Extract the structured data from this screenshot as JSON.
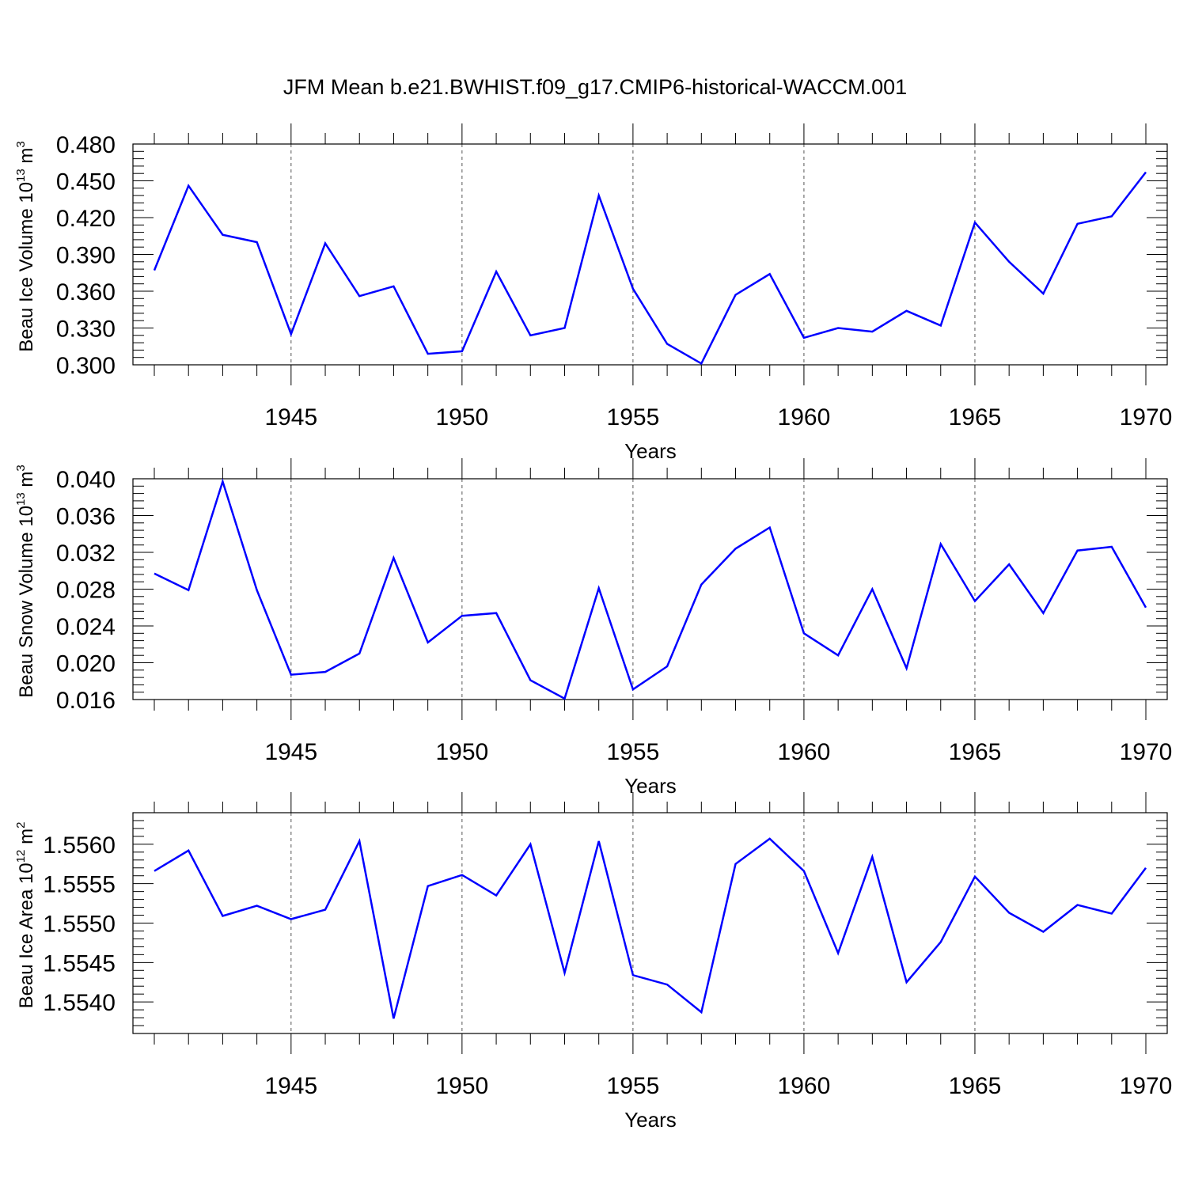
{
  "title": "JFM Mean b.e21.BWHIST.f09_g17.CMIP6-historical-WACCM.001",
  "chart_data": [
    {
      "type": "line",
      "ylabel": "Beau Ice Volume 10",
      "ylabel_sup": "13",
      "ylabel_unit": " m",
      "ylabel_unit_sup": "3",
      "xlabel": "Years",
      "xlim": [
        1941,
        1970
      ],
      "ylim": [
        0.3,
        0.48
      ],
      "yticks": [
        "0.300",
        "0.330",
        "0.360",
        "0.390",
        "0.420",
        "0.450",
        "0.480"
      ],
      "ytick_values": [
        0.3,
        0.33,
        0.36,
        0.39,
        0.42,
        0.45,
        0.48
      ],
      "xticks": [
        "1945",
        "1950",
        "1955",
        "1960",
        "1965",
        "1970"
      ],
      "xtick_values": [
        1945,
        1950,
        1955,
        1960,
        1965,
        1970
      ],
      "x": [
        1941,
        1942,
        1943,
        1944,
        1945,
        1946,
        1947,
        1948,
        1949,
        1950,
        1951,
        1952,
        1953,
        1954,
        1955,
        1956,
        1957,
        1958,
        1959,
        1960,
        1961,
        1962,
        1963,
        1964,
        1965,
        1966,
        1967,
        1968,
        1969,
        1970
      ],
      "values": [
        0.377,
        0.446,
        0.406,
        0.4,
        0.325,
        0.399,
        0.356,
        0.364,
        0.309,
        0.311,
        0.376,
        0.324,
        0.33,
        0.438,
        0.362,
        0.317,
        0.301,
        0.357,
        0.374,
        0.322,
        0.33,
        0.327,
        0.344,
        0.332,
        0.416,
        0.384,
        0.358,
        0.415,
        0.421,
        0.457
      ],
      "grid_x": true,
      "color": "#0000ff"
    },
    {
      "type": "line",
      "ylabel": "Beau Snow Volume 10",
      "ylabel_sup": "13",
      "ylabel_unit": " m",
      "ylabel_unit_sup": "3",
      "xlabel": "Years",
      "xlim": [
        1941,
        1970
      ],
      "ylim": [
        0.016,
        0.04
      ],
      "yticks": [
        "0.016",
        "0.020",
        "0.024",
        "0.028",
        "0.032",
        "0.036",
        "0.040"
      ],
      "ytick_values": [
        0.016,
        0.02,
        0.024,
        0.028,
        0.032,
        0.036,
        0.04
      ],
      "xticks": [
        "1945",
        "1950",
        "1955",
        "1960",
        "1965",
        "1970"
      ],
      "xtick_values": [
        1945,
        1950,
        1955,
        1960,
        1965,
        1970
      ],
      "x": [
        1941,
        1942,
        1943,
        1944,
        1945,
        1946,
        1947,
        1948,
        1949,
        1950,
        1951,
        1952,
        1953,
        1954,
        1955,
        1956,
        1957,
        1958,
        1959,
        1960,
        1961,
        1962,
        1963,
        1964,
        1965,
        1966,
        1967,
        1968,
        1969,
        1970
      ],
      "values": [
        0.0297,
        0.0279,
        0.0397,
        0.0279,
        0.0187,
        0.019,
        0.021,
        0.0314,
        0.0222,
        0.0251,
        0.0254,
        0.0181,
        0.0161,
        0.0281,
        0.0171,
        0.0196,
        0.0285,
        0.0324,
        0.0347,
        0.0232,
        0.0208,
        0.028,
        0.0194,
        0.0329,
        0.0267,
        0.0307,
        0.0254,
        0.0322,
        0.0326,
        0.026
      ],
      "grid_x": true,
      "color": "#0000ff"
    },
    {
      "type": "line",
      "ylabel": "Beau Ice Area 10",
      "ylabel_sup": "12",
      "ylabel_unit": " m",
      "ylabel_unit_sup": "2",
      "xlabel": "Years",
      "xlim": [
        1941,
        1970
      ],
      "ylim": [
        1.5536,
        1.5564
      ],
      "yticks": [
        "1.5540",
        "1.5545",
        "1.5550",
        "1.5555",
        "1.5560"
      ],
      "ytick_values": [
        1.554,
        1.5545,
        1.555,
        1.5555,
        1.556
      ],
      "xticks": [
        "1945",
        "1950",
        "1955",
        "1960",
        "1965",
        "1970"
      ],
      "xtick_values": [
        1945,
        1950,
        1955,
        1960,
        1965,
        1970
      ],
      "x": [
        1941,
        1942,
        1943,
        1944,
        1945,
        1946,
        1947,
        1948,
        1949,
        1950,
        1951,
        1952,
        1953,
        1954,
        1955,
        1956,
        1957,
        1958,
        1959,
        1960,
        1961,
        1962,
        1963,
        1964,
        1965,
        1966,
        1967,
        1968,
        1969,
        1970
      ],
      "values": [
        1.55566,
        1.55592,
        1.55509,
        1.55522,
        1.55505,
        1.55517,
        1.55604,
        1.55379,
        1.55547,
        1.55561,
        1.55535,
        1.556,
        1.55437,
        1.55604,
        1.55434,
        1.55422,
        1.55387,
        1.55575,
        1.55607,
        1.55566,
        1.55462,
        1.55584,
        1.55425,
        1.55476,
        1.55559,
        1.55513,
        1.55489,
        1.55523,
        1.55512,
        1.5557
      ],
      "grid_x": true,
      "color": "#0000ff"
    }
  ]
}
